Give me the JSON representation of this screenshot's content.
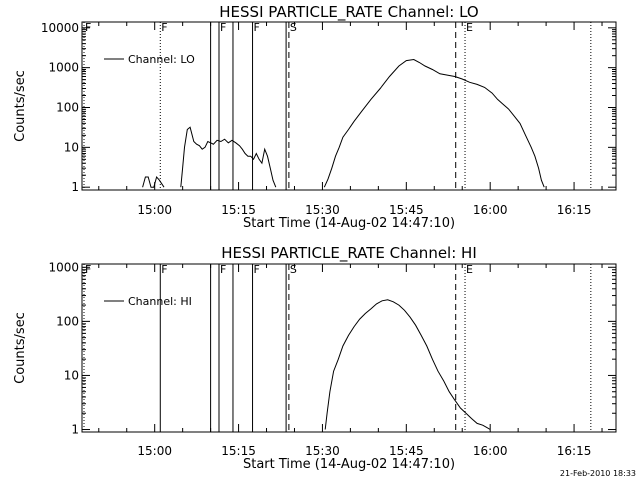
{
  "footer": {
    "date": "21-Feb-2010 18:33"
  },
  "chart_data": [
    {
      "type": "line",
      "title": "HESSI PARTICLE_RATE Channel: LO",
      "xlabel": "Start Time (14-Aug-02 14:47:10)",
      "ylabel": "Counts/sec",
      "x_tick_labels": [
        "15:00",
        "15:15",
        "15:30",
        "15:45",
        "16:00",
        "16:15"
      ],
      "x_ticks_min": [
        780,
        1680,
        2580,
        3480,
        4380,
        5280
      ],
      "xlim_min": [
        0,
        5730
      ],
      "y_scale": "log",
      "ylim": [
        0.85,
        14000
      ],
      "y_tick_labels": [
        "1",
        "10",
        "100",
        "1000",
        "10000"
      ],
      "y_ticks": [
        1,
        10,
        100,
        1000,
        10000
      ],
      "legend": {
        "label": "Channel: LO",
        "position": "top-left"
      },
      "flags": [
        {
          "label": "F",
          "t": 0,
          "style": "dotted"
        },
        {
          "label": "F",
          "t": 840,
          "style": "dotted"
        },
        {
          "label": "",
          "t": 1380,
          "style": "solid"
        },
        {
          "label": "F",
          "t": 1470,
          "style": "solid"
        },
        {
          "label": "",
          "t": 1620,
          "style": "solid"
        },
        {
          "label": "F",
          "t": 1830,
          "style": "solid"
        },
        {
          "label": "",
          "t": 2190,
          "style": "solid"
        },
        {
          "label": "S",
          "t": 2220,
          "style": "dashed"
        },
        {
          "label": "",
          "t": 4010,
          "style": "dashed"
        },
        {
          "label": "E",
          "t": 4110,
          "style": "dotted"
        },
        {
          "label": "",
          "t": 5460,
          "style": "dotted"
        }
      ],
      "series": [
        {
          "segments": [
            {
              "t": [
                650,
                680,
                710,
                740,
                770,
                800,
                830,
                880
              ],
              "y": [
                1,
                1.8,
                1.8,
                1,
                1,
                1.8,
                1.5,
                1
              ]
            },
            {
              "t": [
                1060,
                1080,
                1100,
                1130,
                1160,
                1200,
                1230,
                1260,
                1290,
                1320,
                1350,
                1380,
                1410,
                1450,
                1490,
                1530,
                1570,
                1610,
                1650,
                1690,
                1720,
                1750,
                1780,
                1810,
                1840,
                1870,
                1900,
                1930,
                1960,
                1990,
                2020,
                2050,
                2080
              ],
              "y": [
                1,
                3,
                10,
                28,
                32,
                14,
                12,
                11,
                9,
                10,
                14,
                13,
                12,
                15,
                14,
                16,
                13,
                15,
                13,
                11,
                9,
                7,
                6,
                6,
                5,
                7,
                5,
                4,
                9,
                6,
                3,
                1.5,
                1
              ]
            },
            {
              "t": [
                2600,
                2640,
                2680,
                2720,
                2760,
                2800,
                2860,
                2920,
                3000,
                3100,
                3200,
                3300,
                3400,
                3480,
                3560,
                3620,
                3680,
                3760,
                3840,
                3920,
                4000,
                4080,
                4160,
                4240,
                4320,
                4400,
                4460,
                4520,
                4580,
                4640,
                4700,
                4760,
                4820,
                4860,
                4900,
                4930,
                4960
              ],
              "y": [
                1,
                1.6,
                3,
                6,
                10,
                18,
                28,
                45,
                80,
                160,
                300,
                600,
                1100,
                1500,
                1600,
                1350,
                1100,
                900,
                700,
                650,
                600,
                520,
                430,
                380,
                320,
                230,
                160,
                120,
                90,
                60,
                40,
                20,
                10,
                6,
                3,
                1.5,
                1
              ]
            }
          ]
        }
      ]
    },
    {
      "type": "line",
      "title": "HESSI PARTICLE_RATE Channel: HI",
      "xlabel": "Start Time (14-Aug-02 14:47:10)",
      "ylabel": "Counts/sec",
      "x_tick_labels": [
        "15:00",
        "15:15",
        "15:30",
        "15:45",
        "16:00",
        "16:15"
      ],
      "x_ticks_min": [
        780,
        1680,
        2580,
        3480,
        4380,
        5280
      ],
      "xlim_min": [
        0,
        5730
      ],
      "y_scale": "log",
      "ylim": [
        0.9,
        1150
      ],
      "y_tick_labels": [
        "1",
        "10",
        "100",
        "1000"
      ],
      "y_ticks": [
        1,
        10,
        100,
        1000
      ],
      "legend": {
        "label": "Channel: HI",
        "position": "top-left"
      },
      "flags": [
        {
          "label": "F",
          "t": 0,
          "style": "dotted"
        },
        {
          "label": "F",
          "t": 840,
          "style": "solid"
        },
        {
          "label": "",
          "t": 1380,
          "style": "solid"
        },
        {
          "label": "F",
          "t": 1470,
          "style": "solid"
        },
        {
          "label": "",
          "t": 1620,
          "style": "solid"
        },
        {
          "label": "F",
          "t": 1830,
          "style": "solid"
        },
        {
          "label": "",
          "t": 2190,
          "style": "solid"
        },
        {
          "label": "S",
          "t": 2220,
          "style": "dashed"
        },
        {
          "label": "",
          "t": 4010,
          "style": "dashed"
        },
        {
          "label": "E",
          "t": 4110,
          "style": "dotted"
        },
        {
          "label": "",
          "t": 5460,
          "style": "dotted"
        }
      ],
      "series": [
        {
          "segments": [
            {
              "t": [
                2610,
                2630,
                2660,
                2700,
                2750,
                2800,
                2860,
                2920,
                2980,
                3040,
                3100,
                3160,
                3220,
                3280,
                3340,
                3400,
                3460,
                3520,
                3580,
                3640,
                3700,
                3760,
                3820,
                3880,
                3940,
                4000,
                4060,
                4120,
                4180,
                4240,
                4300,
                4340,
                4380
              ],
              "y": [
                1,
                2,
                5,
                12,
                20,
                35,
                55,
                80,
                110,
                140,
                170,
                210,
                240,
                250,
                230,
                200,
                160,
                120,
                85,
                55,
                35,
                20,
                12,
                8,
                5,
                3.5,
                2.5,
                2,
                1.6,
                1.3,
                1.2,
                1.1,
                1
              ]
            }
          ]
        }
      ]
    }
  ]
}
